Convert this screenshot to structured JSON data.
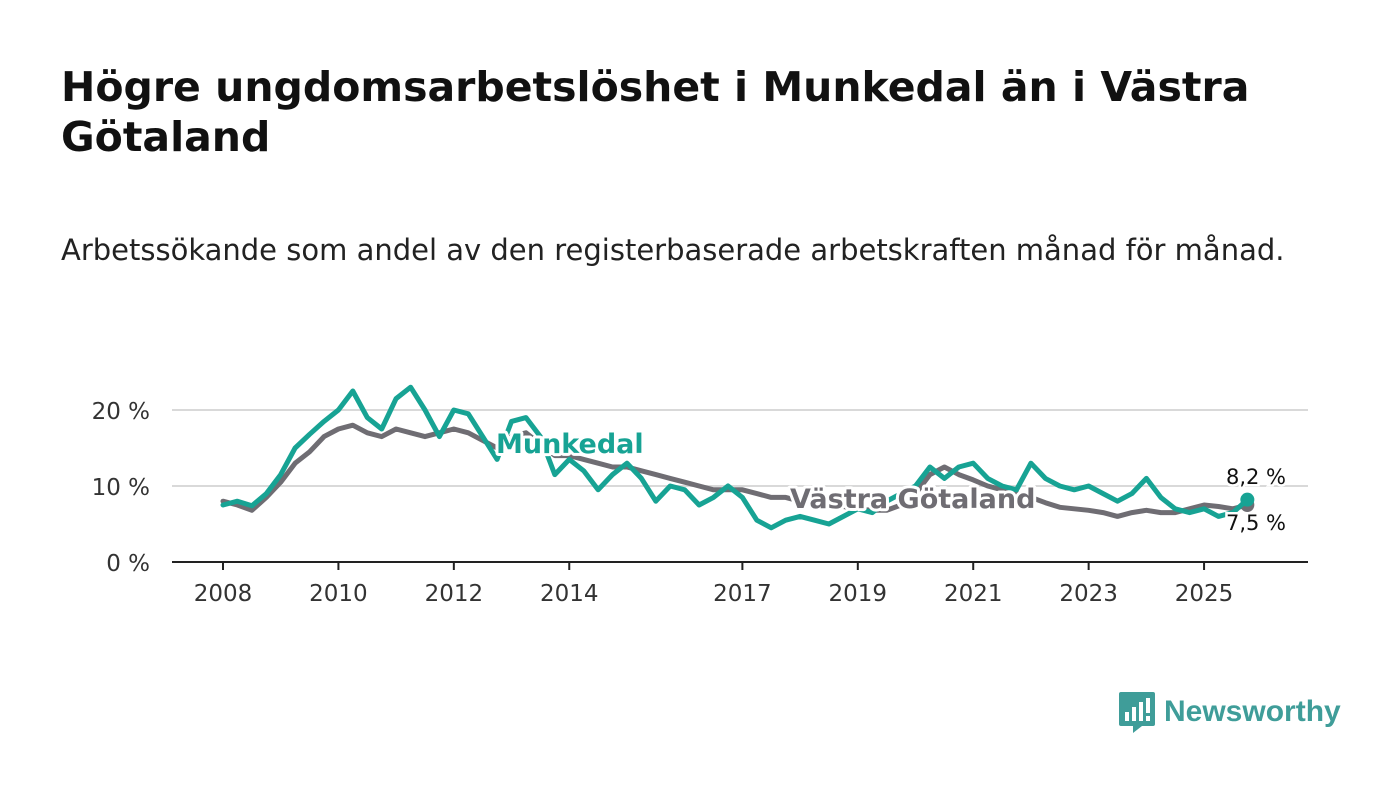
{
  "title": "Högre ungdomsarbetslöshet i Munkedal än i Västra Götaland",
  "subtitle": "Arbetssökande som andel av den registerbaserade arbetskraften månad för månad.",
  "brand": {
    "name": "Newsworthy",
    "icon": "newsworthy-logo-icon",
    "color": "#3f9d99"
  },
  "chart_data": {
    "type": "line",
    "title": "Högre ungdomsarbetslöshet i Munkedal än i Västra Götaland",
    "xlabel": "",
    "ylabel": "",
    "xlim": [
      2008.0,
      2025.9
    ],
    "ylim": [
      0,
      22
    ],
    "grid": true,
    "x_ticks": [
      2008,
      2010,
      2012,
      2014,
      2017,
      2019,
      2021,
      2023,
      2025
    ],
    "x_tick_labels": [
      "2008",
      "2010",
      "2012",
      "2014",
      "2017",
      "2019",
      "2021",
      "2023",
      "2025"
    ],
    "y_ticks": [
      0,
      10,
      20
    ],
    "y_tick_labels": [
      "0 %",
      "10 %",
      "20 %"
    ],
    "end_labels": {
      "Munkedal": "8,2 %",
      "Västra Götaland": "7,5 %"
    },
    "series": [
      {
        "name": "Munkedal",
        "label": "Munkedal",
        "color": "#17a394",
        "x": [
          2008.0,
          2008.25,
          2008.5,
          2008.75,
          2009.0,
          2009.25,
          2009.5,
          2009.75,
          2010.0,
          2010.25,
          2010.5,
          2010.75,
          2011.0,
          2011.25,
          2011.5,
          2011.75,
          2012.0,
          2012.25,
          2012.5,
          2012.75,
          2013.0,
          2013.25,
          2013.5,
          2013.75,
          2014.0,
          2014.25,
          2014.5,
          2014.75,
          2015.0,
          2015.25,
          2015.5,
          2015.75,
          2016.0,
          2016.25,
          2016.5,
          2016.75,
          2017.0,
          2017.25,
          2017.5,
          2017.75,
          2018.0,
          2018.25,
          2018.5,
          2018.75,
          2019.0,
          2019.25,
          2019.5,
          2019.75,
          2020.0,
          2020.25,
          2020.5,
          2020.75,
          2021.0,
          2021.25,
          2021.5,
          2021.75,
          2022.0,
          2022.25,
          2022.5,
          2022.75,
          2023.0,
          2023.25,
          2023.5,
          2023.75,
          2024.0,
          2024.25,
          2024.5,
          2024.75,
          2025.0,
          2025.25,
          2025.5,
          2025.75
        ],
        "values": [
          7.5,
          8.0,
          7.4,
          9.0,
          11.5,
          15.0,
          16.8,
          18.5,
          20.0,
          22.5,
          19.0,
          17.5,
          21.5,
          23.0,
          20.0,
          16.5,
          20.0,
          19.5,
          16.5,
          13.5,
          18.5,
          19.0,
          16.5,
          11.5,
          13.5,
          12.0,
          9.5,
          11.5,
          13.0,
          11.0,
          8.0,
          10.0,
          9.5,
          7.5,
          8.5,
          10.0,
          8.5,
          5.5,
          4.5,
          5.5,
          6.0,
          5.5,
          5.0,
          6.0,
          7.0,
          6.5,
          8.0,
          9.0,
          10.0,
          12.5,
          11.0,
          12.5,
          13.0,
          11.0,
          10.0,
          9.5,
          13.0,
          11.0,
          10.0,
          9.5,
          10.0,
          9.0,
          8.0,
          9.0,
          11.0,
          8.5,
          7.0,
          6.5,
          7.0,
          6.0,
          6.5,
          8.2
        ]
      },
      {
        "name": "Västra Götaland",
        "label": "Västra Götaland",
        "color": "#6f6d73",
        "x": [
          2008.0,
          2008.25,
          2008.5,
          2008.75,
          2009.0,
          2009.25,
          2009.5,
          2009.75,
          2010.0,
          2010.25,
          2010.5,
          2010.75,
          2011.0,
          2011.25,
          2011.5,
          2011.75,
          2012.0,
          2012.25,
          2012.5,
          2012.75,
          2013.0,
          2013.25,
          2013.5,
          2013.75,
          2014.0,
          2014.25,
          2014.5,
          2014.75,
          2015.0,
          2015.25,
          2015.5,
          2015.75,
          2016.0,
          2016.25,
          2016.5,
          2016.75,
          2017.0,
          2017.25,
          2017.5,
          2017.75,
          2018.0,
          2018.25,
          2018.5,
          2018.75,
          2019.0,
          2019.25,
          2019.5,
          2019.75,
          2020.0,
          2020.25,
          2020.5,
          2020.75,
          2021.0,
          2021.25,
          2021.5,
          2021.75,
          2022.0,
          2022.25,
          2022.5,
          2022.75,
          2023.0,
          2023.25,
          2023.5,
          2023.75,
          2024.0,
          2024.25,
          2024.5,
          2024.75,
          2025.0,
          2025.25,
          2025.5,
          2025.75
        ],
        "values": [
          8.0,
          7.5,
          6.8,
          8.5,
          10.5,
          13.0,
          14.5,
          16.5,
          17.5,
          18.0,
          17.0,
          16.5,
          17.5,
          17.0,
          16.5,
          17.0,
          17.5,
          17.0,
          16.0,
          15.0,
          16.5,
          17.0,
          15.5,
          14.0,
          14.0,
          13.5,
          13.0,
          12.5,
          12.5,
          12.0,
          11.5,
          11.0,
          10.5,
          10.0,
          9.5,
          9.5,
          9.5,
          9.0,
          8.5,
          8.5,
          8.0,
          7.8,
          7.5,
          7.3,
          7.0,
          6.8,
          6.8,
          7.5,
          9.0,
          11.5,
          12.5,
          11.5,
          10.8,
          10.0,
          9.5,
          9.0,
          8.5,
          7.8,
          7.2,
          7.0,
          6.8,
          6.5,
          6.0,
          6.5,
          6.8,
          6.5,
          6.5,
          7.0,
          7.5,
          7.3,
          7.0,
          7.5
        ]
      }
    ]
  }
}
